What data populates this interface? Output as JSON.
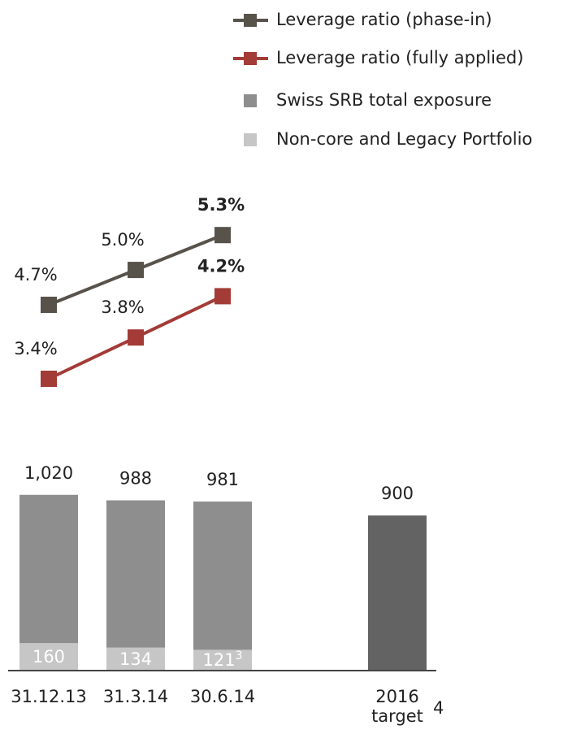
{
  "chart_data": {
    "type": "bar",
    "categories": [
      "31.12.13",
      "31.3.14",
      "30.6.14",
      "2016 target"
    ],
    "category_notes": [
      null,
      null,
      null,
      "4"
    ],
    "bar_series": [
      {
        "name": "Swiss SRB total exposure",
        "color": "#8e8e8e",
        "colors": [
          "#8e8e8e",
          "#8e8e8e",
          "#8e8e8e",
          "#636363"
        ],
        "values": [
          1020,
          988,
          981,
          900
        ],
        "value_labels": [
          "1,020",
          "988",
          "981",
          "900"
        ]
      },
      {
        "name": "Non-core and Legacy Portfolio",
        "color": "#c6c6c6",
        "values": [
          160,
          134,
          121,
          null
        ],
        "value_labels": [
          "160",
          "134",
          "121",
          null
        ],
        "notes": [
          null,
          null,
          "3",
          null
        ]
      }
    ],
    "line_series": [
      {
        "name": "Leverage ratio (phase-in)",
        "color": "#57524a",
        "values": [
          4.7,
          5.0,
          5.3,
          null
        ],
        "value_labels": [
          "4.7%",
          "5.0%",
          "5.3%",
          null
        ]
      },
      {
        "name": "Leverage ratio (fully applied)",
        "color": "#a33b36",
        "values": [
          3.4,
          3.8,
          4.2,
          null
        ],
        "value_labels": [
          "3.4%",
          "3.8%",
          "4.2%",
          null
        ]
      }
    ],
    "legend": "top-right"
  }
}
